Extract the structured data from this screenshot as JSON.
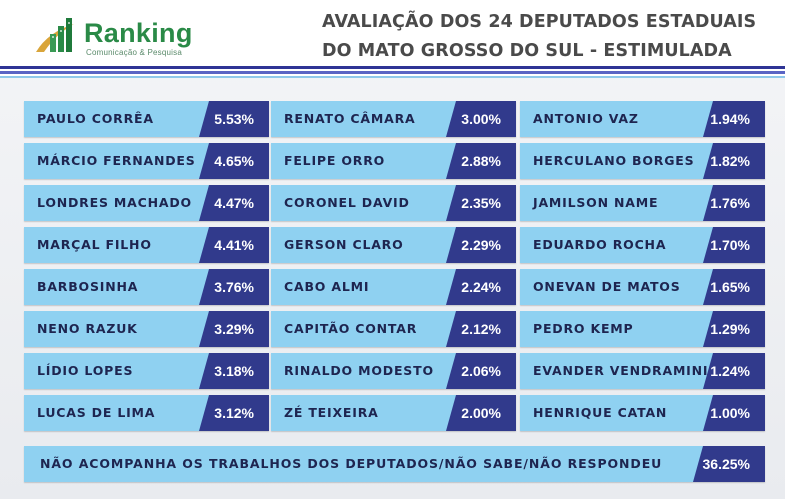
{
  "logo": {
    "name": "Ranking",
    "subtitle": "Comunicação & Pesquisa"
  },
  "title": {
    "line1": "AVALIAÇÃO DOS 24 DEPUTADOS ESTADUAIS",
    "line2": "DO MATO GROSSO DO SUL - ESTIMULADA"
  },
  "colors": {
    "cell_bg": "#8fd1f1",
    "value_bg": "#313a8c",
    "logo_green": "#2a8a47",
    "stripe_dark": "#2f3495"
  },
  "chart_data": {
    "type": "table",
    "columns": [
      [
        {
          "name": "PAULO CORRÊA",
          "label": "5.53%",
          "value": 5.53
        },
        {
          "name": "MÁRCIO FERNANDES",
          "label": "4.65%",
          "value": 4.65
        },
        {
          "name": "LONDRES MACHADO",
          "label": "4.47%",
          "value": 4.47
        },
        {
          "name": "MARÇAL FILHO",
          "label": "4.41%",
          "value": 4.41
        },
        {
          "name": "BARBOSINHA",
          "label": "3.76%",
          "value": 3.76
        },
        {
          "name": "NENO RAZUK",
          "label": "3.29%",
          "value": 3.29
        },
        {
          "name": "LÍDIO LOPES",
          "label": "3.18%",
          "value": 3.18
        },
        {
          "name": "LUCAS DE LIMA",
          "label": "3.12%",
          "value": 3.12
        }
      ],
      [
        {
          "name": "RENATO CÂMARA",
          "label": "3.00%",
          "value": 3.0
        },
        {
          "name": "FELIPE ORRO",
          "label": "2.88%",
          "value": 2.88
        },
        {
          "name": "CORONEL DAVID",
          "label": "2.35%",
          "value": 2.35
        },
        {
          "name": "GERSON CLARO",
          "label": "2.29%",
          "value": 2.29
        },
        {
          "name": "CABO ALMI",
          "label": "2.24%",
          "value": 2.24
        },
        {
          "name": "CAPITÃO CONTAR",
          "label": "2.12%",
          "value": 2.12
        },
        {
          "name": "RINALDO MODESTO",
          "label": "2.06%",
          "value": 2.06
        },
        {
          "name": "ZÉ TEIXEIRA",
          "label": "2.00%",
          "value": 2.0
        }
      ],
      [
        {
          "name": "ANTONIO VAZ",
          "label": "1.94%",
          "value": 1.94
        },
        {
          "name": "HERCULANO BORGES",
          "label": "1.82%",
          "value": 1.82
        },
        {
          "name": "JAMILSON NAME",
          "label": "1.76%",
          "value": 1.76
        },
        {
          "name": "EDUARDO ROCHA",
          "label": "1.70%",
          "value": 1.7
        },
        {
          "name": "ONEVAN DE MATOS",
          "label": "1.65%",
          "value": 1.65
        },
        {
          "name": "PEDRO KEMP",
          "label": "1.29%",
          "value": 1.29
        },
        {
          "name": "EVANDER VENDRAMINI",
          "label": "1.24%",
          "value": 1.24
        },
        {
          "name": "HENRIQUE CATAN",
          "label": "1.00%",
          "value": 1.0
        }
      ]
    ],
    "footer": {
      "name": "NÃO ACOMPANHA OS TRABALHOS DOS DEPUTADOS/NÃO SABE/NÃO RESPONDEU",
      "label": "36.25%",
      "value": 36.25
    }
  }
}
